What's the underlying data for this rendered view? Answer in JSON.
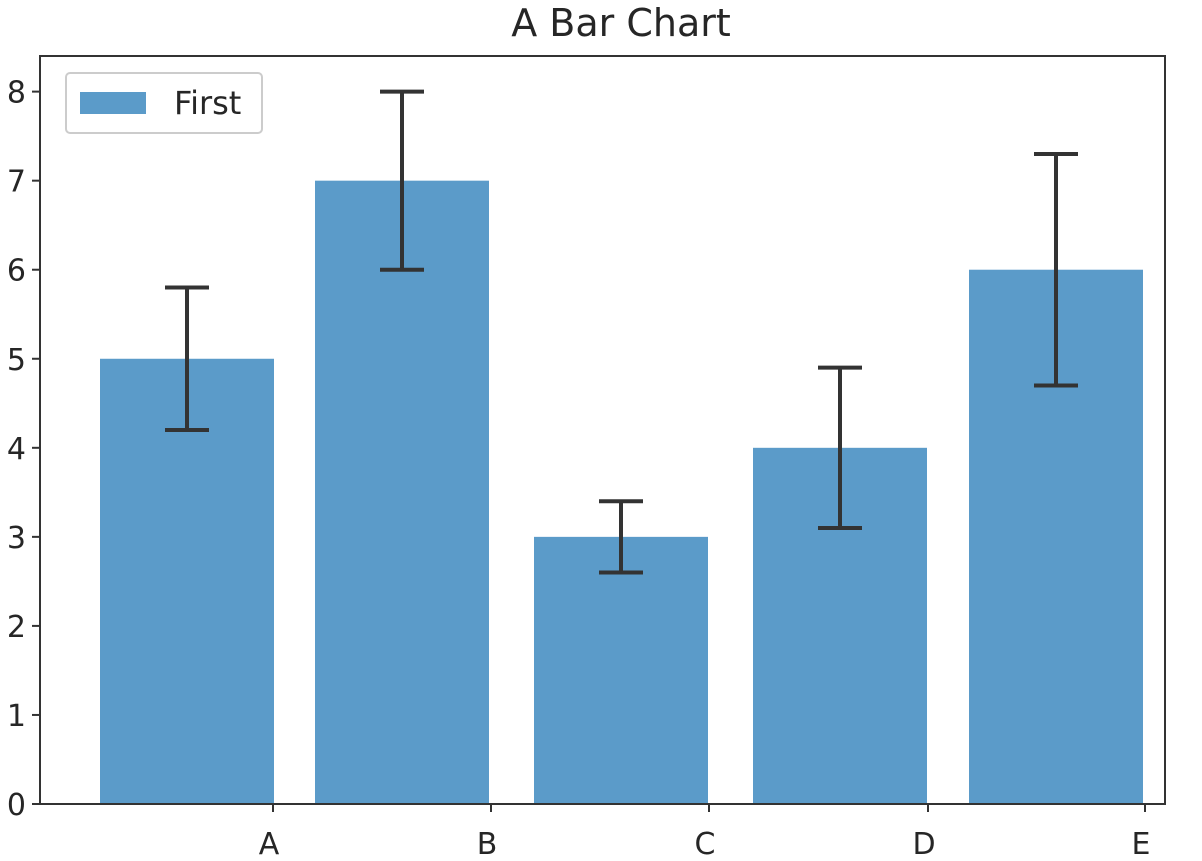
{
  "chart_data": {
    "type": "bar",
    "title": "A Bar Chart",
    "xlabel": "",
    "ylabel": "",
    "categories": [
      "A",
      "B",
      "C",
      "D",
      "E"
    ],
    "series": [
      {
        "name": "First",
        "values": [
          5,
          7,
          3,
          4,
          6
        ],
        "errors": [
          0.8,
          1.0,
          0.4,
          0.9,
          1.3
        ],
        "color": "#5b9bc9"
      }
    ],
    "ylim": [
      0,
      8.4
    ],
    "yticks": [
      0,
      1,
      2,
      3,
      4,
      5,
      6,
      7,
      8
    ],
    "grid": false,
    "legend_position": "top-left",
    "error_bar_color": "#333333",
    "axis_color": "#333333"
  }
}
